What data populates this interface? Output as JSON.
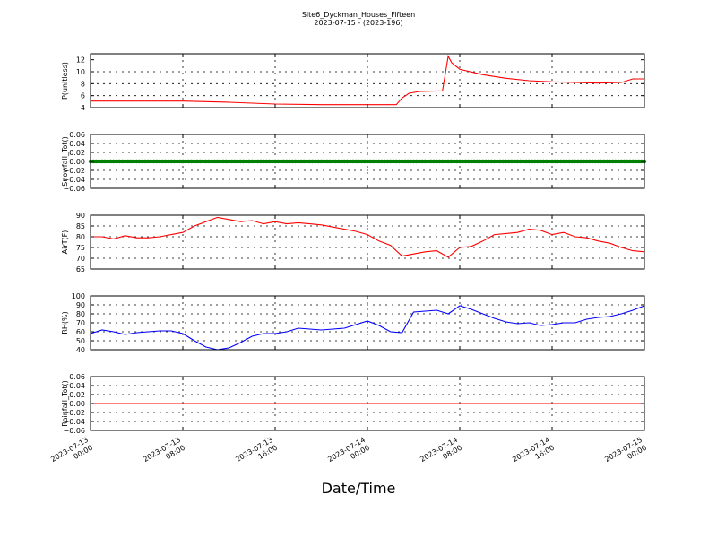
{
  "figure": {
    "title_line1": "Site6_Dyckman_Houses_Fifteen",
    "title_line2": "2023-07-15 - (2023-196)",
    "xlabel": "Date/Time"
  },
  "chart_data": [
    {
      "type": "line",
      "ylabel": "P(unitless)",
      "ylim": [
        4,
        13
      ],
      "yticks": [
        4,
        6,
        8,
        10,
        12
      ],
      "ytick_labels": [
        "4",
        "6",
        "8",
        "10",
        "12"
      ],
      "grid": true,
      "series": [
        {
          "color": "#ff0000",
          "x": [
            0,
            4,
            8,
            12,
            16,
            20,
            24,
            26.5,
            27,
            27.6,
            28.5,
            30.5,
            31,
            31.3,
            32,
            34,
            36,
            38,
            40,
            42,
            44,
            46,
            47,
            48
          ],
          "y": [
            5.1,
            5.1,
            5.1,
            4.9,
            4.6,
            4.5,
            4.5,
            4.5,
            5.6,
            6.4,
            6.7,
            6.8,
            12.6,
            11.5,
            10.4,
            9.5,
            8.9,
            8.5,
            8.3,
            8.2,
            8.1,
            8.2,
            8.8,
            8.8
          ]
        }
      ]
    },
    {
      "type": "line",
      "ylabel": "Snowfall_Tot()",
      "ylim": [
        -0.06,
        0.06
      ],
      "yticks": [
        -0.06,
        -0.04,
        -0.02,
        0.0,
        0.02,
        0.04,
        0.06
      ],
      "ytick_labels": [
        "−0.06",
        "−0.04",
        "−0.02",
        "0.00",
        "0.02",
        "0.04",
        "0.06"
      ],
      "grid": true,
      "series": [
        {
          "color": "#008000",
          "markers": true,
          "x": [
            0,
            48
          ],
          "y": [
            0,
            0
          ]
        }
      ]
    },
    {
      "type": "line",
      "ylabel": "AirT(F)",
      "ylim": [
        65,
        90
      ],
      "yticks": [
        65,
        70,
        75,
        80,
        85,
        90
      ],
      "ytick_labels": [
        "65",
        "70",
        "75",
        "80",
        "85",
        "90"
      ],
      "grid": true,
      "series": [
        {
          "color": "#ff0000",
          "x": [
            0,
            1,
            2,
            3,
            4,
            5,
            6,
            7,
            8,
            9,
            10,
            11,
            12,
            13,
            14,
            15,
            16,
            17,
            18,
            19,
            20,
            21,
            22,
            23,
            24,
            25,
            26,
            27,
            28,
            29,
            30,
            31,
            32,
            33,
            34,
            35,
            36,
            37,
            38,
            39,
            40,
            41,
            42,
            43,
            44,
            45,
            46,
            47,
            48
          ],
          "y": [
            80,
            80,
            79,
            80.5,
            79.5,
            79.5,
            80,
            81,
            82,
            85,
            87,
            89,
            88,
            87,
            87.5,
            86,
            87,
            86,
            86.5,
            86,
            85.5,
            84.5,
            83.5,
            82.5,
            81,
            78,
            76,
            71,
            72,
            73,
            73.5,
            70.5,
            75,
            75.5,
            78,
            81,
            81.5,
            82,
            83.5,
            83,
            81,
            82,
            80,
            79.5,
            78,
            77,
            75,
            73.5,
            73
          ]
        }
      ]
    },
    {
      "type": "line",
      "ylabel": "RH(%)",
      "ylim": [
        40,
        100
      ],
      "yticks": [
        40,
        50,
        60,
        70,
        80,
        90,
        100
      ],
      "ytick_labels": [
        "40",
        "50",
        "60",
        "70",
        "80",
        "90",
        "100"
      ],
      "grid": true,
      "series": [
        {
          "color": "#0000ff",
          "x": [
            0,
            1,
            2,
            3,
            4,
            5,
            6,
            7,
            8,
            9,
            10,
            11,
            12,
            13,
            14,
            15,
            16,
            17,
            18,
            19,
            20,
            21,
            22,
            23,
            24,
            25,
            26,
            27,
            28,
            29,
            30,
            31,
            32,
            33,
            34,
            35,
            36,
            37,
            38,
            39,
            40,
            41,
            42,
            43,
            44,
            45,
            46,
            47,
            48
          ],
          "y": [
            58,
            62,
            60,
            57,
            59,
            60,
            61,
            61,
            58,
            50,
            43,
            40,
            42,
            48,
            55,
            58,
            58,
            60,
            64,
            63,
            62,
            63,
            64,
            68,
            72,
            67,
            60,
            59,
            82,
            83,
            84,
            80,
            89,
            85,
            80,
            75,
            71,
            69,
            70,
            67,
            68,
            70,
            70,
            74,
            76,
            77,
            80,
            84,
            89
          ]
        }
      ]
    },
    {
      "type": "line",
      "ylabel": "Rainfall_Tot()",
      "ylim": [
        -0.06,
        0.06
      ],
      "yticks": [
        -0.06,
        -0.04,
        -0.02,
        0.0,
        0.02,
        0.04,
        0.06
      ],
      "ytick_labels": [
        "−0.06",
        "−0.04",
        "−0.02",
        "0.00",
        "0.02",
        "0.04",
        "0.06"
      ],
      "grid": true,
      "series": [
        {
          "color": "#ff0000",
          "x": [
            0,
            48
          ],
          "y": [
            0,
            0
          ]
        }
      ]
    }
  ],
  "x_axis": {
    "range_hours": [
      0,
      48
    ],
    "tick_hours": [
      0,
      8,
      16,
      24,
      32,
      40,
      48
    ],
    "tick_labels": [
      [
        "2023-07-13",
        "00:00"
      ],
      [
        "2023-07-13",
        "08:00"
      ],
      [
        "2023-07-13",
        "16:00"
      ],
      [
        "2023-07-14",
        "00:00"
      ],
      [
        "2023-07-14",
        "08:00"
      ],
      [
        "2023-07-14",
        "16:00"
      ],
      [
        "2023-07-15",
        "00:00"
      ]
    ]
  }
}
